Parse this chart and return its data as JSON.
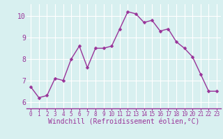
{
  "x": [
    0,
    1,
    2,
    3,
    4,
    5,
    6,
    7,
    8,
    9,
    10,
    11,
    12,
    13,
    14,
    15,
    16,
    17,
    18,
    19,
    20,
    21,
    22,
    23
  ],
  "y": [
    6.7,
    6.2,
    6.3,
    7.1,
    7.0,
    8.0,
    8.6,
    7.6,
    8.5,
    8.5,
    8.6,
    9.4,
    10.2,
    10.1,
    9.7,
    9.8,
    9.3,
    9.4,
    8.8,
    8.5,
    8.1,
    7.3,
    6.5,
    6.5
  ],
  "line_color": "#993399",
  "marker_color": "#993399",
  "bg_color": "#d8f0f0",
  "grid_color": "#ffffff",
  "xlabel": "Windchill (Refroidissement éolien,°C)",
  "xlabel_color": "#993399",
  "xlim_min": -0.5,
  "xlim_max": 23.5,
  "ylim_min": 5.7,
  "ylim_max": 10.55,
  "yticks": [
    6,
    7,
    8,
    9,
    10
  ],
  "xticks": [
    0,
    1,
    2,
    3,
    4,
    5,
    6,
    7,
    8,
    9,
    10,
    11,
    12,
    13,
    14,
    15,
    16,
    17,
    18,
    19,
    20,
    21,
    22,
    23
  ],
  "tick_label_color": "#993399",
  "xtick_fontsize": 5.5,
  "ytick_fontsize": 7,
  "xlabel_fontsize": 7,
  "line_width": 1.0,
  "marker_size": 2.5,
  "spine_color": "#993399"
}
